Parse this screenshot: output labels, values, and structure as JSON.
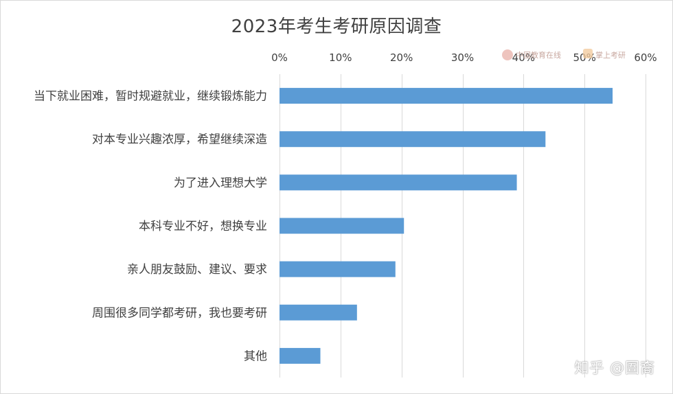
{
  "chart_data": {
    "type": "bar",
    "orientation": "horizontal",
    "title": "2023年考生考研原因调查",
    "categories": [
      "当下就业困难，暂时规避就业，继续锻炼能力",
      "对本专业兴趣浓厚，希望继续深造",
      "为了进入理想大学",
      "本科专业不好，想换专业",
      "亲人朋友鼓励、建议、要求",
      "周围很多同学都考研，我也要考研",
      "其他"
    ],
    "values": [
      54.6,
      43.6,
      38.9,
      20.4,
      19.0,
      12.7,
      6.7
    ],
    "xlim": [
      0,
      60
    ],
    "xticks": [
      "0%",
      "10%",
      "20%",
      "30%",
      "40%",
      "50%",
      "60%"
    ],
    "x_axis_position": "top",
    "grid": "vertical",
    "bar_color": "#5b9bd5",
    "grid_color": "#d9d9d9"
  },
  "watermarks": {
    "logo_left": "中国教育在线",
    "logo_right": "掌上考研",
    "corner": "知乎 @圄裔"
  }
}
